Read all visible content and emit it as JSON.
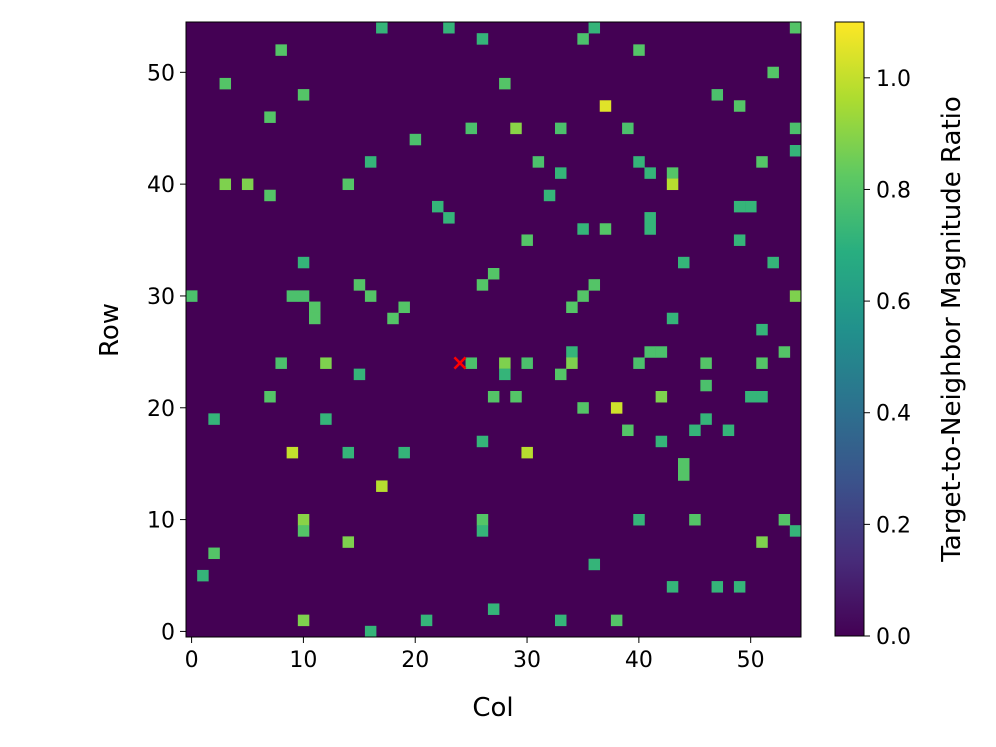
{
  "chart_data": {
    "type": "heatmap",
    "title": "",
    "xlabel": "Col",
    "ylabel": "Row",
    "xlim": [
      -0.5,
      54.5
    ],
    "ylim": [
      -0.5,
      54.5
    ],
    "xticks": [
      0,
      10,
      20,
      30,
      40,
      50
    ],
    "yticks": [
      0,
      10,
      20,
      30,
      40,
      50
    ],
    "grid_size": [
      55,
      55
    ],
    "background_value": 0.0,
    "colormap": "viridis",
    "colorbar": {
      "label": "Target-to-Neighbor Magnitude Ratio",
      "range": [
        0.0,
        1.1
      ],
      "ticks": [
        "0.0",
        "0.2",
        "0.4",
        "0.6",
        "0.8",
        "1.0"
      ]
    },
    "marker": {
      "label": "target",
      "symbol": "×",
      "col": 24,
      "row": 24,
      "color": "#ff0000"
    },
    "cells": [
      [
        17,
        54,
        0.72
      ],
      [
        23,
        54,
        0.72
      ],
      [
        36,
        54,
        0.72
      ],
      [
        54,
        54,
        0.8
      ],
      [
        26,
        53,
        0.72
      ],
      [
        35,
        53,
        0.78
      ],
      [
        8,
        52,
        0.8
      ],
      [
        40,
        52,
        0.8
      ],
      [
        52,
        50,
        0.8
      ],
      [
        3,
        49,
        0.8
      ],
      [
        28,
        49,
        0.8
      ],
      [
        10,
        48,
        0.8
      ],
      [
        47,
        48,
        0.78
      ],
      [
        49,
        47,
        0.8
      ],
      [
        37,
        47,
        1.05
      ],
      [
        7,
        46,
        0.8
      ],
      [
        25,
        45,
        0.78
      ],
      [
        29,
        45,
        0.9
      ],
      [
        33,
        45,
        0.78
      ],
      [
        39,
        45,
        0.78
      ],
      [
        54,
        45,
        0.78
      ],
      [
        20,
        44,
        0.78
      ],
      [
        54,
        43,
        0.72
      ],
      [
        16,
        42,
        0.72
      ],
      [
        31,
        42,
        0.78
      ],
      [
        40,
        42,
        0.72
      ],
      [
        51,
        42,
        0.8
      ],
      [
        33,
        41,
        0.72
      ],
      [
        41,
        41,
        0.72
      ],
      [
        43,
        41,
        0.8
      ],
      [
        3,
        40,
        0.88
      ],
      [
        5,
        40,
        0.88
      ],
      [
        14,
        40,
        0.8
      ],
      [
        43,
        40,
        0.98
      ],
      [
        7,
        39,
        0.8
      ],
      [
        32,
        39,
        0.72
      ],
      [
        22,
        38,
        0.72
      ],
      [
        49,
        38,
        0.72
      ],
      [
        50,
        38,
        0.72
      ],
      [
        23,
        37,
        0.72
      ],
      [
        41,
        37,
        0.72
      ],
      [
        35,
        36,
        0.72
      ],
      [
        37,
        36,
        0.8
      ],
      [
        41,
        36,
        0.72
      ],
      [
        30,
        35,
        0.8
      ],
      [
        49,
        35,
        0.72
      ],
      [
        10,
        33,
        0.72
      ],
      [
        44,
        33,
        0.72
      ],
      [
        52,
        33,
        0.72
      ],
      [
        27,
        32,
        0.8
      ],
      [
        15,
        31,
        0.8
      ],
      [
        26,
        31,
        0.8
      ],
      [
        36,
        31,
        0.8
      ],
      [
        0,
        30,
        0.78
      ],
      [
        9,
        30,
        0.78
      ],
      [
        10,
        30,
        0.78
      ],
      [
        16,
        30,
        0.8
      ],
      [
        35,
        30,
        0.8
      ],
      [
        54,
        30,
        0.88
      ],
      [
        11,
        29,
        0.8
      ],
      [
        19,
        29,
        0.8
      ],
      [
        34,
        29,
        0.8
      ],
      [
        11,
        28,
        0.8
      ],
      [
        18,
        28,
        0.8
      ],
      [
        43,
        28,
        0.72
      ],
      [
        51,
        27,
        0.72
      ],
      [
        34,
        25,
        0.72
      ],
      [
        41,
        25,
        0.78
      ],
      [
        42,
        25,
        0.78
      ],
      [
        53,
        25,
        0.8
      ],
      [
        8,
        24,
        0.78
      ],
      [
        12,
        24,
        0.88
      ],
      [
        25,
        24,
        0.78
      ],
      [
        28,
        24,
        0.88
      ],
      [
        30,
        24,
        0.78
      ],
      [
        34,
        24,
        0.88
      ],
      [
        40,
        24,
        0.78
      ],
      [
        46,
        24,
        0.8
      ],
      [
        51,
        24,
        0.8
      ],
      [
        15,
        23,
        0.72
      ],
      [
        28,
        23,
        0.72
      ],
      [
        33,
        23,
        0.8
      ],
      [
        46,
        22,
        0.78
      ],
      [
        7,
        21,
        0.8
      ],
      [
        27,
        21,
        0.8
      ],
      [
        29,
        21,
        0.8
      ],
      [
        42,
        21,
        0.88
      ],
      [
        50,
        21,
        0.72
      ],
      [
        51,
        21,
        0.72
      ],
      [
        35,
        20,
        0.8
      ],
      [
        38,
        20,
        1.02
      ],
      [
        2,
        19,
        0.72
      ],
      [
        12,
        19,
        0.72
      ],
      [
        46,
        19,
        0.72
      ],
      [
        39,
        18,
        0.8
      ],
      [
        45,
        18,
        0.72
      ],
      [
        48,
        18,
        0.72
      ],
      [
        26,
        17,
        0.72
      ],
      [
        42,
        17,
        0.72
      ],
      [
        9,
        16,
        1.0
      ],
      [
        14,
        16,
        0.72
      ],
      [
        19,
        16,
        0.72
      ],
      [
        30,
        16,
        0.98
      ],
      [
        44,
        15,
        0.8
      ],
      [
        44,
        14,
        0.8
      ],
      [
        17,
        13,
        0.98
      ],
      [
        10,
        10,
        0.9
      ],
      [
        26,
        10,
        0.8
      ],
      [
        40,
        10,
        0.72
      ],
      [
        45,
        10,
        0.8
      ],
      [
        53,
        10,
        0.8
      ],
      [
        10,
        9,
        0.8
      ],
      [
        26,
        9,
        0.72
      ],
      [
        54,
        9,
        0.72
      ],
      [
        14,
        8,
        0.88
      ],
      [
        51,
        8,
        0.88
      ],
      [
        2,
        7,
        0.8
      ],
      [
        36,
        6,
        0.72
      ],
      [
        1,
        5,
        0.72
      ],
      [
        43,
        4,
        0.72
      ],
      [
        47,
        4,
        0.72
      ],
      [
        49,
        4,
        0.72
      ],
      [
        27,
        2,
        0.72
      ],
      [
        10,
        1,
        0.88
      ],
      [
        21,
        1,
        0.72
      ],
      [
        33,
        1,
        0.72
      ],
      [
        38,
        1,
        0.8
      ],
      [
        16,
        0,
        0.72
      ]
    ]
  }
}
